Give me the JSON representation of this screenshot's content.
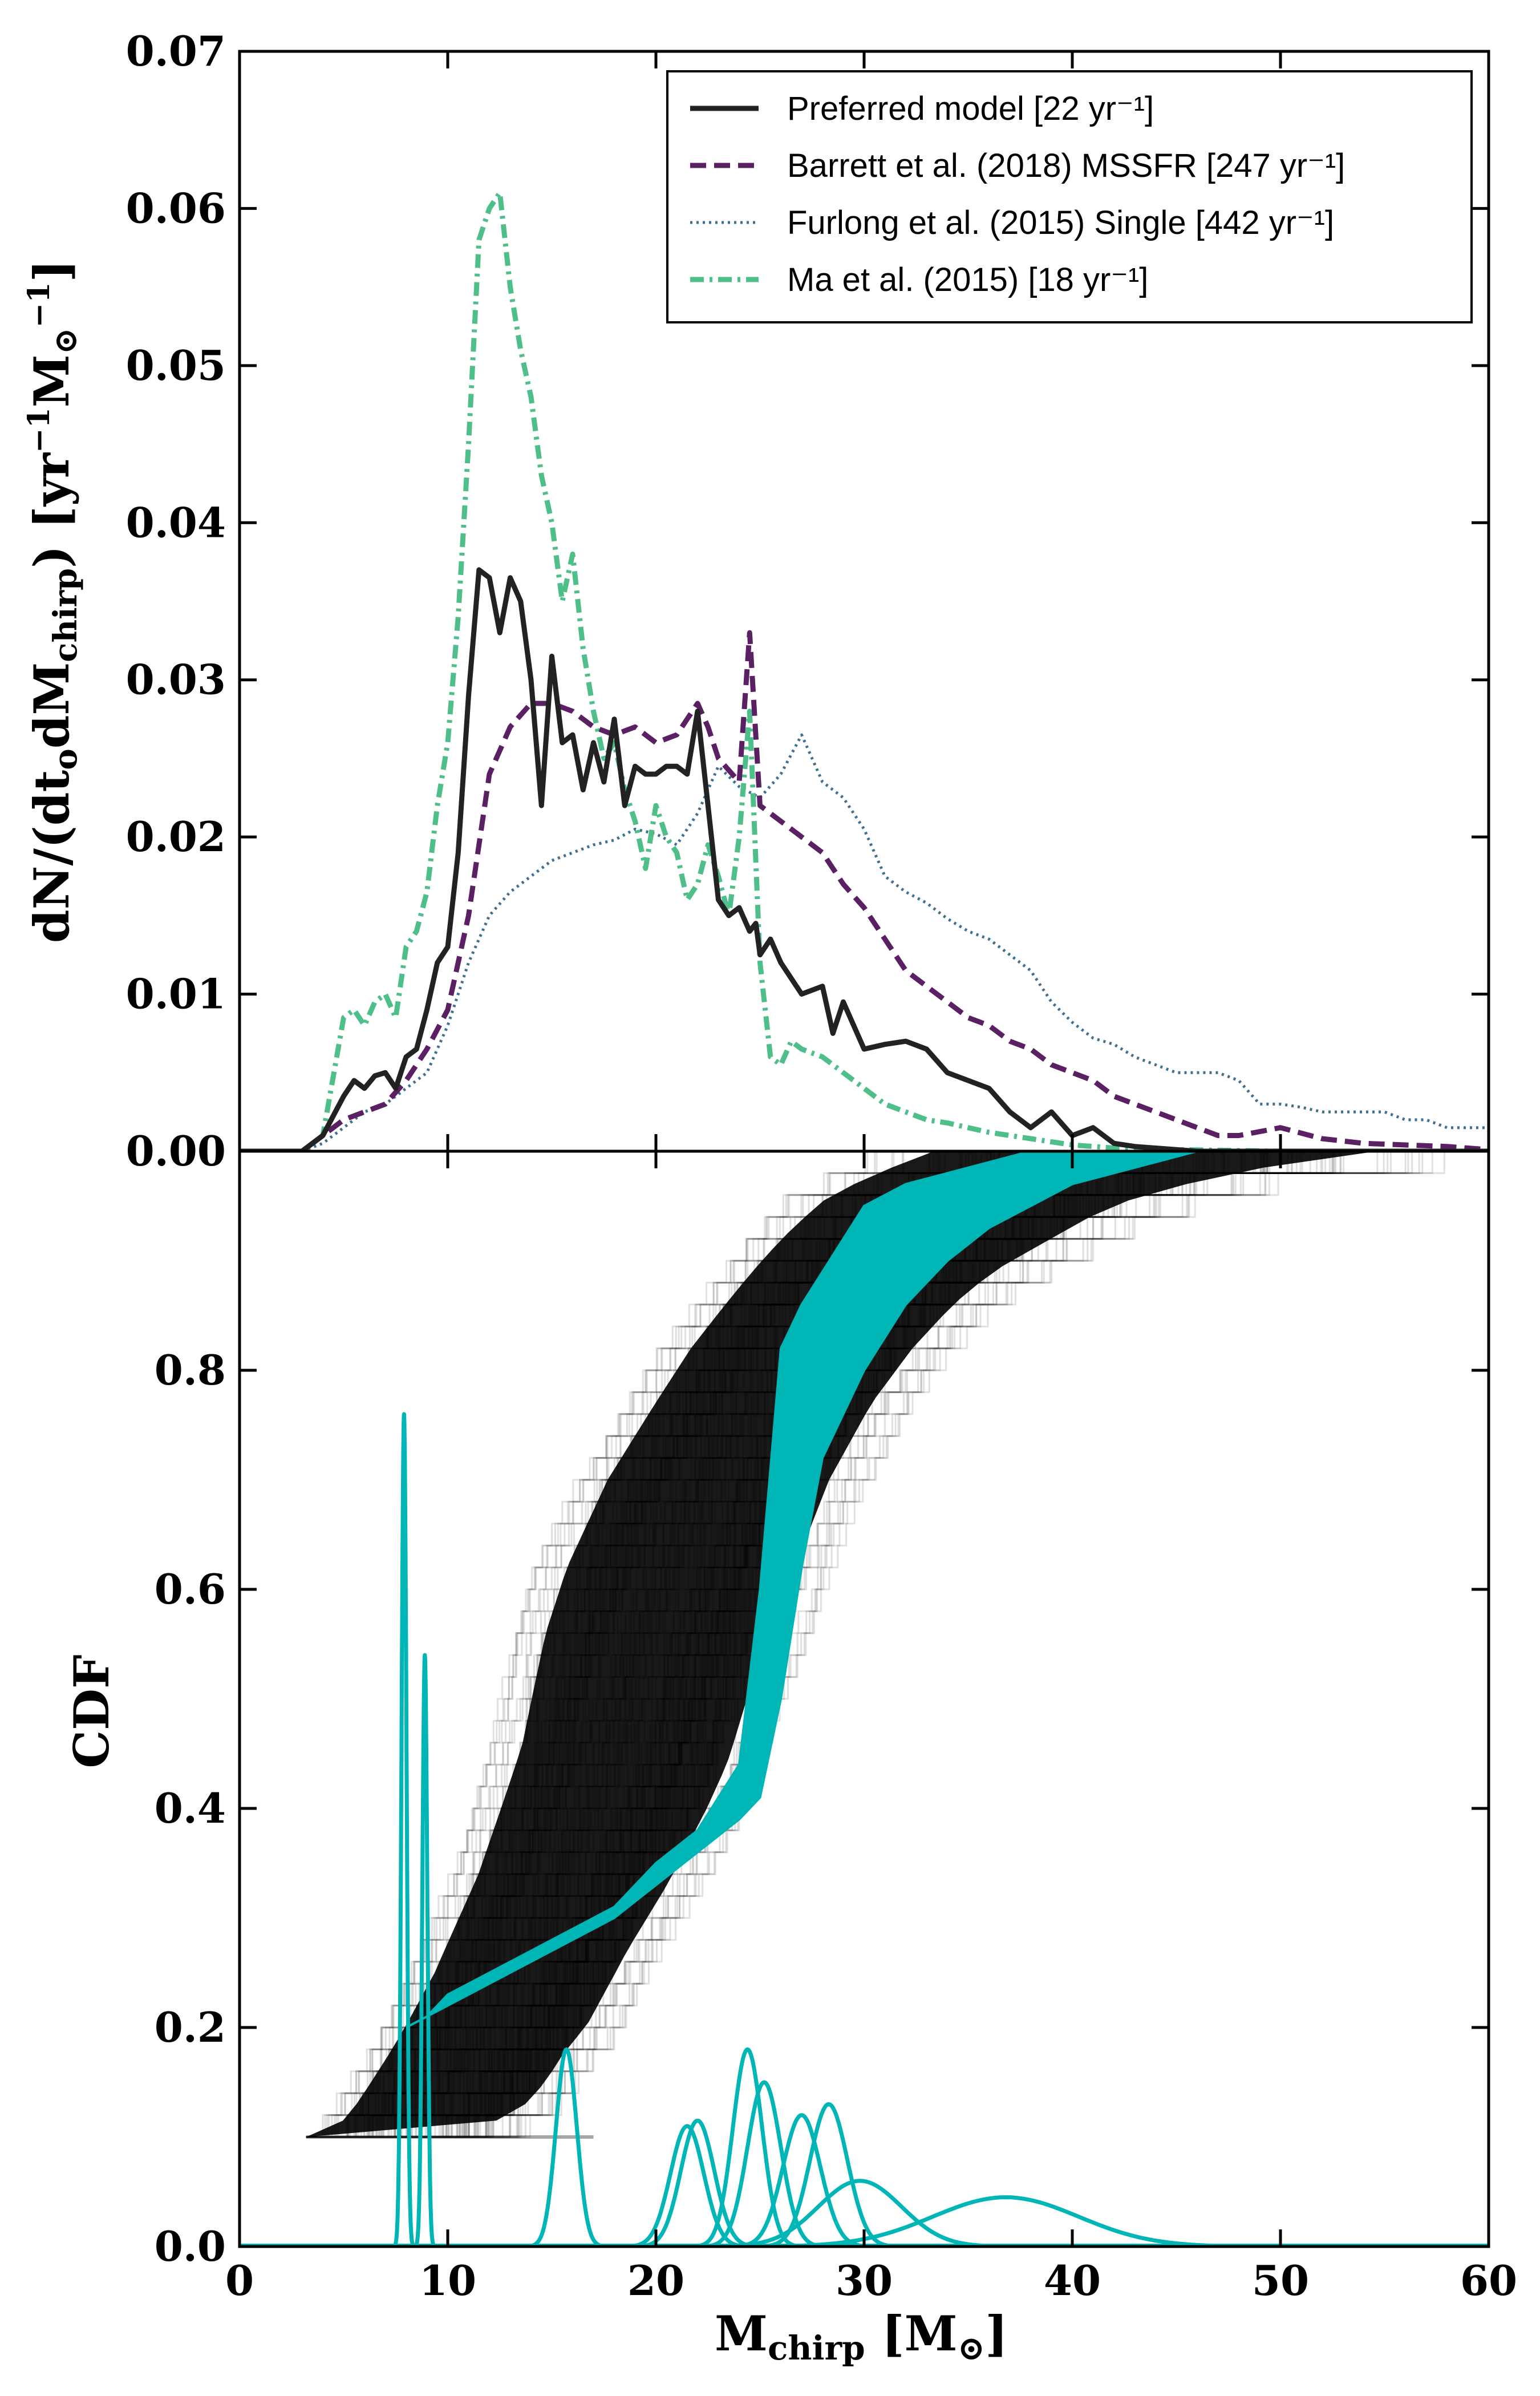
{
  "chart_data": [
    {
      "type": "line",
      "panel": "top",
      "ylabel": "dN/(dt_o dM_chirp) [yr^-1 M_⊙^-1]",
      "ylim": [
        0,
        0.07
      ],
      "xlim": [
        0,
        60
      ],
      "yticks": [
        "0.00",
        "0.01",
        "0.02",
        "0.03",
        "0.04",
        "0.05",
        "0.06",
        "0.07"
      ],
      "legend_position": "top-right",
      "series": [
        {
          "name": "Preferred model [22 yr⁻¹]",
          "color": "#222222",
          "style": "solid",
          "x": [
            0,
            3,
            4,
            5,
            5.5,
            6,
            6.5,
            7,
            7.5,
            8,
            8.5,
            9,
            9.5,
            10,
            10.5,
            11,
            11.5,
            12,
            12.5,
            13,
            13.5,
            14,
            14.5,
            15,
            15.5,
            16,
            16.5,
            17,
            17.5,
            18,
            18.5,
            19,
            19.5,
            20,
            20.5,
            21,
            21.5,
            22,
            22.5,
            23,
            23.5,
            24,
            24.5,
            24.8,
            25,
            25.5,
            26,
            27,
            28,
            28.5,
            29,
            30,
            31,
            32,
            33,
            34,
            35,
            36,
            37,
            38,
            39,
            40,
            41,
            42,
            43,
            44,
            45,
            46,
            47,
            48,
            50,
            52,
            55,
            60
          ],
          "y": [
            0,
            0,
            0.001,
            0.0035,
            0.0045,
            0.004,
            0.0048,
            0.005,
            0.004,
            0.006,
            0.0065,
            0.009,
            0.012,
            0.013,
            0.019,
            0.029,
            0.037,
            0.0365,
            0.033,
            0.0365,
            0.035,
            0.03,
            0.022,
            0.0315,
            0.026,
            0.0265,
            0.023,
            0.026,
            0.0235,
            0.0275,
            0.022,
            0.0245,
            0.024,
            0.024,
            0.0245,
            0.0245,
            0.024,
            0.028,
            0.022,
            0.016,
            0.015,
            0.0155,
            0.014,
            0.0145,
            0.0125,
            0.0135,
            0.012,
            0.01,
            0.0105,
            0.0075,
            0.0095,
            0.0065,
            0.0068,
            0.007,
            0.0065,
            0.005,
            0.0045,
            0.004,
            0.0025,
            0.0015,
            0.0025,
            0.001,
            0.0015,
            0.0005,
            0.0003,
            0.0002,
            0.0001,
            0,
            0,
            0,
            0,
            0,
            0,
            0
          ]
        },
        {
          "name": "Barrett et al. (2018) MSSFR [247 yr⁻¹]",
          "color": "#5b1f63",
          "style": "dashed",
          "x": [
            0,
            3,
            4,
            5,
            6,
            7,
            8,
            9,
            10,
            11,
            12,
            13,
            14,
            15,
            16,
            17,
            18,
            19,
            20,
            21,
            22,
            22.5,
            23,
            24,
            24.5,
            25,
            26,
            27,
            28,
            29,
            30,
            31,
            32,
            33,
            34,
            35,
            36,
            37,
            38,
            39,
            40,
            41,
            42,
            43,
            44,
            45,
            46,
            47,
            48,
            50,
            52,
            54,
            56,
            58,
            60
          ],
          "y": [
            0,
            0,
            0.001,
            0.002,
            0.0025,
            0.003,
            0.0045,
            0.0065,
            0.009,
            0.015,
            0.024,
            0.027,
            0.0285,
            0.0285,
            0.028,
            0.027,
            0.0265,
            0.027,
            0.026,
            0.0265,
            0.0285,
            0.027,
            0.025,
            0.0235,
            0.033,
            0.022,
            0.021,
            0.02,
            0.019,
            0.017,
            0.0155,
            0.0135,
            0.0115,
            0.0105,
            0.0095,
            0.0085,
            0.008,
            0.007,
            0.0065,
            0.0055,
            0.005,
            0.0045,
            0.0035,
            0.003,
            0.0025,
            0.002,
            0.0015,
            0.001,
            0.001,
            0.0015,
            0.0008,
            0.0005,
            0.0004,
            0.0003,
            0.0001
          ]
        },
        {
          "name": "Furlong et al. (2015) Single [442 yr⁻¹]",
          "color": "#3f6f91",
          "style": "dotted",
          "x": [
            0,
            3,
            4,
            5,
            6,
            7,
            8,
            9,
            10,
            11,
            12,
            13,
            14,
            15,
            16,
            17,
            18,
            19,
            20,
            21,
            22,
            23,
            24,
            25,
            26,
            27,
            28,
            29,
            30,
            31,
            32,
            33,
            34,
            35,
            36,
            37,
            38,
            39,
            40,
            41,
            42,
            43,
            44,
            45,
            46,
            47,
            48,
            49,
            50,
            51,
            52,
            53,
            54,
            55,
            56,
            57,
            58,
            59,
            60
          ],
          "y": [
            0,
            0,
            0.0005,
            0.0015,
            0.0025,
            0.003,
            0.004,
            0.005,
            0.008,
            0.012,
            0.015,
            0.0165,
            0.0175,
            0.0185,
            0.019,
            0.0195,
            0.0198,
            0.0205,
            0.0202,
            0.0195,
            0.0215,
            0.0245,
            0.0232,
            0.0225,
            0.024,
            0.0265,
            0.0235,
            0.0225,
            0.0205,
            0.0175,
            0.0165,
            0.0158,
            0.0148,
            0.014,
            0.0135,
            0.0125,
            0.0115,
            0.0095,
            0.0082,
            0.0072,
            0.0068,
            0.006,
            0.0055,
            0.005,
            0.005,
            0.005,
            0.0045,
            0.003,
            0.003,
            0.0028,
            0.0025,
            0.0025,
            0.0025,
            0.0025,
            0.002,
            0.002,
            0.0015,
            0.0015,
            0.0015
          ]
        },
        {
          "name": "Ma et al. (2015) [18 yr⁻¹]",
          "color": "#4fbf8a",
          "style": "dashdot",
          "x": [
            0,
            3,
            4,
            5,
            5.5,
            6,
            6.5,
            7,
            7.5,
            8,
            8.5,
            9,
            9.5,
            10,
            10.5,
            11,
            11.5,
            12,
            12.5,
            13,
            13.5,
            14,
            14.5,
            15,
            15.5,
            16,
            16.5,
            17,
            17.5,
            18,
            18.5,
            19,
            19.5,
            20,
            20.5,
            21,
            21.5,
            22,
            22.5,
            23,
            23.5,
            24,
            24.5,
            25,
            25.5,
            26,
            26.5,
            27,
            28,
            29,
            30,
            31,
            32,
            33,
            34,
            35,
            36,
            37,
            38,
            39,
            40,
            42,
            45,
            50,
            60
          ],
          "y": [
            0,
            0,
            0.001,
            0.0085,
            0.009,
            0.008,
            0.0095,
            0.01,
            0.0085,
            0.013,
            0.014,
            0.0165,
            0.022,
            0.026,
            0.034,
            0.045,
            0.058,
            0.06,
            0.061,
            0.055,
            0.051,
            0.048,
            0.043,
            0.04,
            0.035,
            0.038,
            0.032,
            0.028,
            0.025,
            0.026,
            0.023,
            0.021,
            0.018,
            0.022,
            0.02,
            0.019,
            0.016,
            0.017,
            0.0195,
            0.0175,
            0.015,
            0.02,
            0.028,
            0.012,
            0.006,
            0.0055,
            0.007,
            0.0065,
            0.006,
            0.005,
            0.004,
            0.003,
            0.0025,
            0.002,
            0.0018,
            0.0015,
            0.0012,
            0.001,
            0.0008,
            0.0006,
            0.0004,
            0.0002,
            0.0001,
            0,
            0
          ]
        }
      ]
    },
    {
      "type": "line",
      "panel": "bottom",
      "xlabel": "M_chirp [M_⊙]",
      "ylabel": "CDF",
      "xlim": [
        0,
        60
      ],
      "ylim": [
        0,
        1
      ],
      "xticks": [
        "0",
        "10",
        "20",
        "30",
        "40",
        "50",
        "60"
      ],
      "yticks": [
        "0.0",
        "0.2",
        "0.4",
        "0.6",
        "0.8"
      ],
      "bands": [
        {
          "description": "black CDF curves",
          "color": "#000000",
          "lower_x": [
            3.2,
            4,
            6,
            8,
            10,
            12,
            14,
            15,
            16,
            17,
            18,
            20,
            22,
            24,
            25,
            26,
            28,
            30,
            32,
            34,
            36,
            38,
            40,
            42,
            44,
            46,
            48,
            50,
            52,
            55,
            58
          ],
          "lower_y": [
            0.1,
            0.1,
            0.1,
            0.1,
            0.1,
            0.1,
            0.12,
            0.13,
            0.15,
            0.18,
            0.2,
            0.27,
            0.33,
            0.4,
            0.44,
            0.5,
            0.6,
            0.7,
            0.77,
            0.82,
            0.86,
            0.89,
            0.91,
            0.93,
            0.95,
            0.96,
            0.97,
            0.98,
            0.985,
            0.99,
            1.0
          ],
          "upper_x": [
            3.2,
            4,
            6,
            8,
            10,
            12,
            13,
            14,
            16,
            18,
            20,
            22,
            24,
            26,
            28,
            30,
            31
          ],
          "upper_y": [
            0.1,
            0.12,
            0.18,
            0.25,
            0.34,
            0.46,
            0.56,
            0.62,
            0.7,
            0.76,
            0.82,
            0.87,
            0.92,
            0.96,
            0.98,
            1.0,
            1.0
          ]
        },
        {
          "description": "cyan CDF band",
          "color": "#00b5b5",
          "lower_x": [
            8,
            9,
            10,
            12,
            14,
            16,
            18,
            20,
            22,
            24,
            25,
            26,
            27,
            28,
            30,
            32,
            34,
            36,
            38,
            40,
            42,
            44,
            46
          ],
          "lower_y": [
            0.2,
            0.21,
            0.22,
            0.24,
            0.26,
            0.28,
            0.3,
            0.33,
            0.36,
            0.39,
            0.41,
            0.5,
            0.62,
            0.72,
            0.8,
            0.86,
            0.9,
            0.93,
            0.95,
            0.97,
            0.98,
            0.99,
            1.0
          ],
          "upper_x": [
            8,
            9,
            10,
            12,
            14,
            16,
            18,
            20,
            22,
            24,
            25,
            26,
            27,
            28,
            29,
            30,
            32,
            34,
            36,
            38
          ],
          "upper_y": [
            0.2,
            0.21,
            0.23,
            0.25,
            0.27,
            0.29,
            0.31,
            0.35,
            0.38,
            0.44,
            0.6,
            0.82,
            0.86,
            0.89,
            0.92,
            0.95,
            0.97,
            0.98,
            0.99,
            1.0
          ]
        }
      ],
      "peaks": {
        "color": "#00b5b5",
        "mu": [
          7.9,
          8.9,
          15.7,
          21.5,
          22.0,
          24.4,
          25.2,
          27.0,
          28.3,
          29.8,
          36.8
        ],
        "sigma": [
          0.12,
          0.12,
          0.5,
          0.8,
          0.8,
          0.7,
          0.8,
          0.9,
          0.9,
          2.0,
          3.5
        ],
        "amp": [
          0.76,
          0.54,
          0.18,
          0.11,
          0.115,
          0.18,
          0.15,
          0.12,
          0.13,
          0.06,
          0.045
        ]
      }
    }
  ]
}
